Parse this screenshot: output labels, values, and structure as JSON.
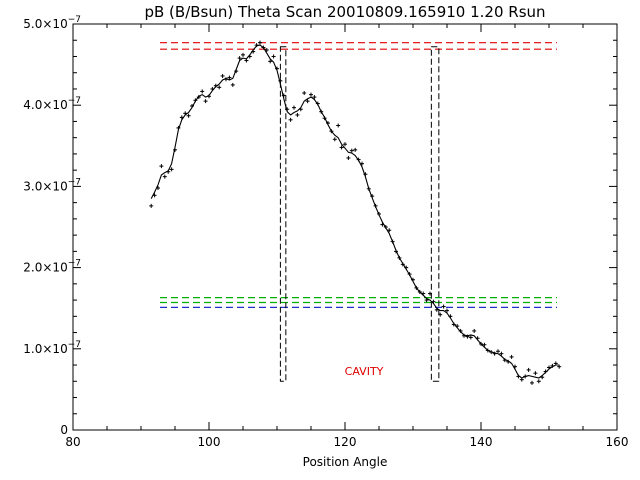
{
  "chart_data": {
    "type": "line",
    "title": "pB (B/Bsun) Theta Scan 20010809.165910 1.20 Rsun",
    "xlabel": "Position Angle",
    "ylabel": "",
    "xlim": [
      80,
      160
    ],
    "ylim": [
      0,
      5e-07
    ],
    "x_ticks": [
      80,
      100,
      120,
      140,
      160
    ],
    "x_tick_labels": [
      "80",
      "100",
      "120",
      "140",
      "160"
    ],
    "y_ticks": [
      0,
      1e-07,
      2e-07,
      3e-07,
      4e-07,
      5e-07
    ],
    "y_tick_labels": [
      {
        "mantissa": "0",
        "exp": ""
      },
      {
        "mantissa": "1.0×10",
        "exp": "−7"
      },
      {
        "mantissa": "2.0×10",
        "exp": "−7"
      },
      {
        "mantissa": "3.0×10",
        "exp": "−7"
      },
      {
        "mantissa": "4.0×10",
        "exp": "−7"
      },
      {
        "mantissa": "5.0×10",
        "exp": "−7"
      }
    ],
    "grid": false,
    "series": [
      {
        "style": "plus-markers",
        "color": "#000000",
        "x": [
          91.5,
          92.0,
          92.5,
          93.0,
          93.5,
          94.0,
          94.5,
          95.0,
          95.5,
          96.0,
          96.5,
          97.0,
          97.5,
          98.0,
          98.5,
          99.0,
          99.5,
          100.0,
          100.5,
          101.0,
          101.5,
          102.0,
          102.5,
          103.0,
          103.5,
          104.0,
          104.5,
          105.0,
          105.5,
          106.0,
          106.5,
          107.0,
          107.5,
          108.0,
          108.5,
          109.0,
          109.5,
          110.0,
          110.5,
          111.0,
          111.5,
          112.0,
          112.5,
          113.0,
          113.5,
          114.0,
          114.5,
          115.0,
          115.5,
          116.0,
          116.5,
          117.0,
          117.5,
          118.0,
          118.5,
          119.0,
          119.5,
          120.0,
          120.5,
          121.0,
          121.5,
          122.0,
          122.5,
          123.0,
          123.5,
          124.0,
          124.5,
          125.0,
          125.5,
          126.0,
          126.5,
          127.0,
          127.5,
          128.0,
          128.5,
          129.0,
          129.5,
          130.0,
          130.5,
          131.0,
          131.5,
          132.0,
          132.5,
          133.0,
          133.5,
          134.0,
          134.5,
          135.0,
          135.5,
          136.0,
          136.5,
          137.0,
          137.5,
          138.0,
          138.5,
          139.0,
          139.5,
          140.0,
          140.5,
          141.0,
          141.5,
          142.0,
          142.5,
          143.0,
          143.5,
          144.0,
          144.5,
          145.0,
          145.5,
          146.0,
          146.5,
          147.0,
          147.5,
          148.0,
          148.5,
          149.0,
          149.5,
          150.0,
          150.5,
          151.0,
          151.5
        ],
        "y": [
          2.76e-07,
          2.89e-07,
          2.98e-07,
          3.25e-07,
          3.12e-07,
          3.18e-07,
          3.21e-07,
          3.45e-07,
          3.72e-07,
          3.85e-07,
          3.9e-07,
          3.87e-07,
          3.99e-07,
          4.06e-07,
          4.1e-07,
          4.17e-07,
          4.05e-07,
          4.11e-07,
          4.2e-07,
          4.24e-07,
          4.22e-07,
          4.36e-07,
          4.32e-07,
          4.34e-07,
          4.25e-07,
          4.42e-07,
          4.58e-07,
          4.62e-07,
          4.55e-07,
          4.6e-07,
          4.66e-07,
          4.74e-07,
          4.77e-07,
          4.71e-07,
          4.68e-07,
          4.54e-07,
          4.6e-07,
          4.45e-07,
          4.3e-07,
          4.12e-07,
          3.95e-07,
          3.82e-07,
          3.97e-07,
          3.88e-07,
          3.95e-07,
          4.15e-07,
          4.05e-07,
          4.13e-07,
          4.1e-07,
          4.02e-07,
          3.92e-07,
          3.84e-07,
          3.78e-07,
          3.68e-07,
          3.58e-07,
          3.75e-07,
          3.48e-07,
          3.52e-07,
          3.35e-07,
          3.44e-07,
          3.45e-07,
          3.33e-07,
          3.28e-07,
          3.15e-07,
          2.97e-07,
          2.88e-07,
          2.76e-07,
          2.66e-07,
          2.53e-07,
          2.5e-07,
          2.46e-07,
          2.32e-07,
          2.2e-07,
          2.12e-07,
          2.04e-07,
          2e-07,
          1.92e-07,
          1.85e-07,
          1.75e-07,
          1.7e-07,
          1.68e-07,
          1.6e-07,
          1.68e-07,
          1.58e-07,
          1.48e-07,
          1.42e-07,
          1.52e-07,
          1.47e-07,
          1.4e-07,
          1.3e-07,
          1.28e-07,
          1.22e-07,
          1.16e-07,
          1.15e-07,
          1.14e-07,
          1.22e-07,
          1.13e-07,
          1.06e-07,
          1.05e-07,
          9.8e-08,
          9.6e-08,
          9.4e-08,
          9.7e-08,
          9.4e-08,
          8.6e-08,
          8.4e-08,
          9e-08,
          7.8e-08,
          6.6e-08,
          6.2e-08,
          6.6e-08,
          7.4e-08,
          5.8e-08,
          7e-08,
          6e-08,
          6.5e-08,
          7.2e-08,
          7.7e-08,
          7.9e-08,
          8.2e-08,
          7.8e-08
        ]
      },
      {
        "style": "solid-line",
        "color": "#000000",
        "x": [
          91.5,
          92.0,
          92.5,
          93.0,
          93.5,
          94.0,
          94.5,
          95.0,
          95.5,
          96.0,
          96.5,
          97.0,
          97.5,
          98.0,
          98.5,
          99.0,
          99.5,
          100.0,
          100.5,
          101.0,
          101.5,
          102.0,
          102.5,
          103.0,
          103.5,
          104.0,
          104.5,
          105.0,
          105.5,
          106.0,
          106.5,
          107.0,
          107.5,
          108.0,
          108.5,
          109.0,
          109.5,
          110.0,
          110.5,
          111.0,
          111.5,
          112.0,
          112.5,
          113.0,
          113.5,
          114.0,
          114.5,
          115.0,
          115.5,
          116.0,
          116.5,
          117.0,
          117.5,
          118.0,
          118.5,
          119.0,
          119.5,
          120.0,
          120.5,
          121.0,
          121.5,
          122.0,
          122.5,
          123.0,
          123.5,
          124.0,
          124.5,
          125.0,
          125.5,
          126.0,
          126.5,
          127.0,
          127.5,
          128.0,
          128.5,
          129.0,
          129.5,
          130.0,
          130.5,
          131.0,
          131.5,
          132.0,
          132.5,
          133.0,
          133.5,
          134.0,
          134.5,
          135.0,
          135.5,
          136.0,
          136.5,
          137.0,
          137.5,
          138.0,
          138.5,
          139.0,
          139.5,
          140.0,
          140.5,
          141.0,
          141.5,
          142.0,
          142.5,
          143.0,
          143.5,
          144.0,
          144.5,
          145.0,
          145.5,
          146.0,
          146.5,
          147.0,
          147.5,
          148.0,
          148.5,
          149.0,
          149.5,
          150.0,
          150.5,
          151.0,
          151.5
        ],
        "y": [
          2.85e-07,
          2.93e-07,
          3.02e-07,
          3.14e-07,
          3.17e-07,
          3.19e-07,
          3.28e-07,
          3.48e-07,
          3.7e-07,
          3.82e-07,
          3.88e-07,
          3.91e-07,
          3.97e-07,
          4.05e-07,
          4.11e-07,
          4.13e-07,
          4.1e-07,
          4.12e-07,
          4.18e-07,
          4.23e-07,
          4.26e-07,
          4.31e-07,
          4.33e-07,
          4.31e-07,
          4.33e-07,
          4.44e-07,
          4.55e-07,
          4.58e-07,
          4.57e-07,
          4.62e-07,
          4.68e-07,
          4.73e-07,
          4.74e-07,
          4.71e-07,
          4.64e-07,
          4.57e-07,
          4.53e-07,
          4.43e-07,
          4.26e-07,
          4.08e-07,
          3.92e-07,
          3.88e-07,
          3.91e-07,
          3.93e-07,
          3.97e-07,
          4.05e-07,
          4.08e-07,
          4.1e-07,
          4.07e-07,
          4.01e-07,
          3.92e-07,
          3.85e-07,
          3.76e-07,
          3.68e-07,
          3.63e-07,
          3.6e-07,
          3.52e-07,
          3.47e-07,
          3.42e-07,
          3.41e-07,
          3.38e-07,
          3.32e-07,
          3.24e-07,
          3.12e-07,
          2.97e-07,
          2.86e-07,
          2.75e-07,
          2.65e-07,
          2.56e-07,
          2.49e-07,
          2.42e-07,
          2.32e-07,
          2.21e-07,
          2.12e-07,
          2.05e-07,
          1.98e-07,
          1.91e-07,
          1.83e-07,
          1.75e-07,
          1.7e-07,
          1.66e-07,
          1.62e-07,
          1.6e-07,
          1.56e-07,
          1.5e-07,
          1.47e-07,
          1.47e-07,
          1.44e-07,
          1.38e-07,
          1.31e-07,
          1.26e-07,
          1.21e-07,
          1.17e-07,
          1.16e-07,
          1.17e-07,
          1.16e-07,
          1.11e-07,
          1.06e-07,
          1.02e-07,
          9.8e-08,
          9.6e-08,
          9.5e-08,
          9.4e-08,
          9.1e-08,
          8.7e-08,
          8.5e-08,
          8.2e-08,
          7.5e-08,
          6.7e-08,
          6.4e-08,
          6.6e-08,
          6.7e-08,
          6.6e-08,
          6.5e-08,
          6.4e-08,
          6.7e-08,
          7.1e-08,
          7.5e-08,
          7.8e-08,
          8e-08,
          8e-08
        ]
      }
    ],
    "hlines": [
      {
        "y": 4.77e-07,
        "color": "#e00000",
        "style": "dashed"
      },
      {
        "y": 4.69e-07,
        "color": "#e00000",
        "style": "dashed"
      },
      {
        "y": 1.63e-07,
        "color": "#00b000",
        "style": "dashed"
      },
      {
        "y": 1.57e-07,
        "color": "#00b000",
        "style": "dashed"
      },
      {
        "y": 1.51e-07,
        "color": "#2030d0",
        "style": "dashed"
      }
    ],
    "boxes": [
      {
        "x0": 110.5,
        "x1": 111.3,
        "y0": 6e-08,
        "y1": 4.72e-07,
        "color": "#000000"
      },
      {
        "x0": 132.7,
        "x1": 133.8,
        "y0": 6e-08,
        "y1": 4.72e-07,
        "color": "#000000"
      }
    ],
    "annotations": [
      {
        "text": "CAVITY",
        "x": 122.8,
        "y": 6.8e-08,
        "color": "#e00000"
      }
    ]
  }
}
